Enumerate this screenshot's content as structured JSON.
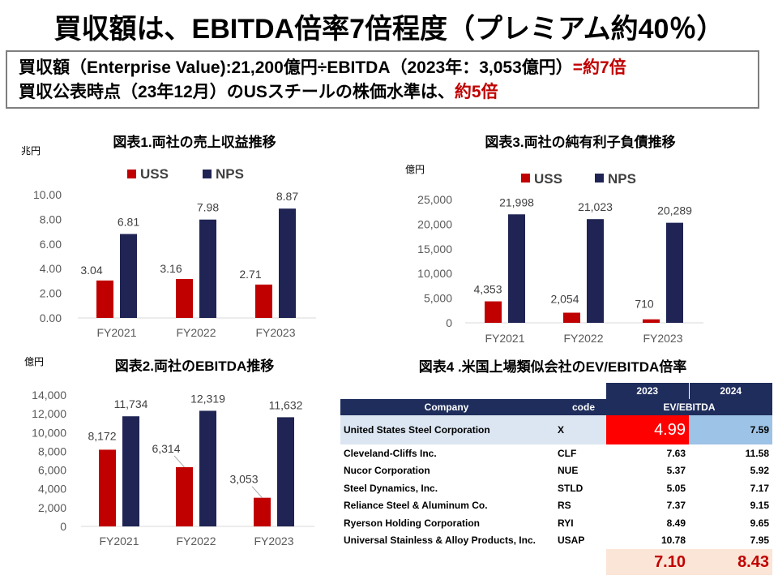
{
  "title": "買収額は、EBITDA倍率7倍程度（プレミアム約40％）",
  "info": {
    "line1_main": "買収額（Enterprise Value):21,200億円÷EBITDA（2023年：3,053億円）",
    "line1_highlight": "=約7倍",
    "line2_main": "買収公表時点（23年12月）のUSスチールの株価水準は、",
    "line2_highlight": "約5倍"
  },
  "colors": {
    "uss": "#c00000",
    "nps": "#1f2454",
    "header": "#1f2d5c",
    "uss_row": "#dce6f2",
    "uss_2023": "#ff0000",
    "uss_2024": "#9dc3e6",
    "avg": "#fbe5d6"
  },
  "legend": {
    "uss": "USS",
    "nps": "NPS"
  },
  "chart_data": [
    {
      "id": "chart1",
      "type": "bar",
      "title": "図表1.両社の売上収益推移",
      "unit": "兆円",
      "categories": [
        "FY2021",
        "FY2022",
        "FY2023"
      ],
      "series": [
        {
          "name": "USS",
          "values": [
            3.04,
            3.16,
            2.71
          ],
          "labels": [
            "3.04",
            "3.16",
            "2.71"
          ]
        },
        {
          "name": "NPS",
          "values": [
            6.81,
            7.98,
            8.87
          ],
          "labels": [
            "6.81",
            "7.98",
            "8.87"
          ]
        }
      ],
      "ylim": [
        0,
        10
      ],
      "yticks": [
        "0.00",
        "2.00",
        "4.00",
        "6.00",
        "8.00",
        "10.00"
      ],
      "legend_position": "top"
    },
    {
      "id": "chart2",
      "type": "bar",
      "title": "図表2.両社のEBITDA推移",
      "unit": "億円",
      "categories": [
        "FY2021",
        "FY2022",
        "FY2023"
      ],
      "series": [
        {
          "name": "USS",
          "values": [
            8172,
            6314,
            3053
          ],
          "labels": [
            "8,172",
            "6,314",
            "3,053"
          ]
        },
        {
          "name": "NPS",
          "values": [
            11734,
            12319,
            11632
          ],
          "labels": [
            "11,734",
            "12,319",
            "11,632"
          ]
        }
      ],
      "ylim": [
        0,
        14000
      ],
      "yticks": [
        "0",
        "2,000",
        "4,000",
        "6,000",
        "8,000",
        "10,000",
        "12,000",
        "14,000"
      ],
      "legend_position": "none"
    },
    {
      "id": "chart3",
      "type": "bar",
      "title": "図表3.両社の純有利子負債推移",
      "unit": "億円",
      "categories": [
        "FY2021",
        "FY2022",
        "FY2023"
      ],
      "series": [
        {
          "name": "USS",
          "values": [
            4353,
            2054,
            710
          ],
          "labels": [
            "4,353",
            "2,054",
            "710"
          ]
        },
        {
          "name": "NPS",
          "values": [
            21998,
            21023,
            20289
          ],
          "labels": [
            "21,998",
            "21,023",
            "20,289"
          ]
        }
      ],
      "ylim": [
        0,
        25000
      ],
      "yticks": [
        "0",
        "5,000",
        "10,000",
        "15,000",
        "20,000",
        "25,000"
      ],
      "legend_position": "top"
    },
    {
      "id": "table4",
      "type": "table",
      "title": "図表4 .米国上場類似会社のEV/EBITDA倍率",
      "year_headers": [
        "2023",
        "2024"
      ],
      "col_headers": {
        "company": "Company",
        "code": "code",
        "metric": "EV/EBITDA"
      },
      "highlight": {
        "company": "United States Steel Corporation",
        "code": "X",
        "v2023": "4.99",
        "v2024": "7.59"
      },
      "rows": [
        {
          "company": "Cleveland-Cliffs Inc.",
          "code": "CLF",
          "v2023": "7.63",
          "v2024": "11.58"
        },
        {
          "company": "Nucor Corporation",
          "code": "NUE",
          "v2023": "5.37",
          "v2024": "5.92"
        },
        {
          "company": "Steel Dynamics, Inc.",
          "code": "STLD",
          "v2023": "5.05",
          "v2024": "7.17"
        },
        {
          "company": "Reliance Steel & Aluminum Co.",
          "code": "RS",
          "v2023": "7.37",
          "v2024": "9.15"
        },
        {
          "company": "Ryerson Holding Corporation",
          "code": "RYI",
          "v2023": "8.49",
          "v2024": "9.65"
        },
        {
          "company": "Universal Stainless & Alloy Products, Inc.",
          "code": "USAP",
          "v2023": "10.78",
          "v2024": "7.95"
        }
      ],
      "average": {
        "v2023": "7.10",
        "v2024": "8.43"
      }
    }
  ]
}
